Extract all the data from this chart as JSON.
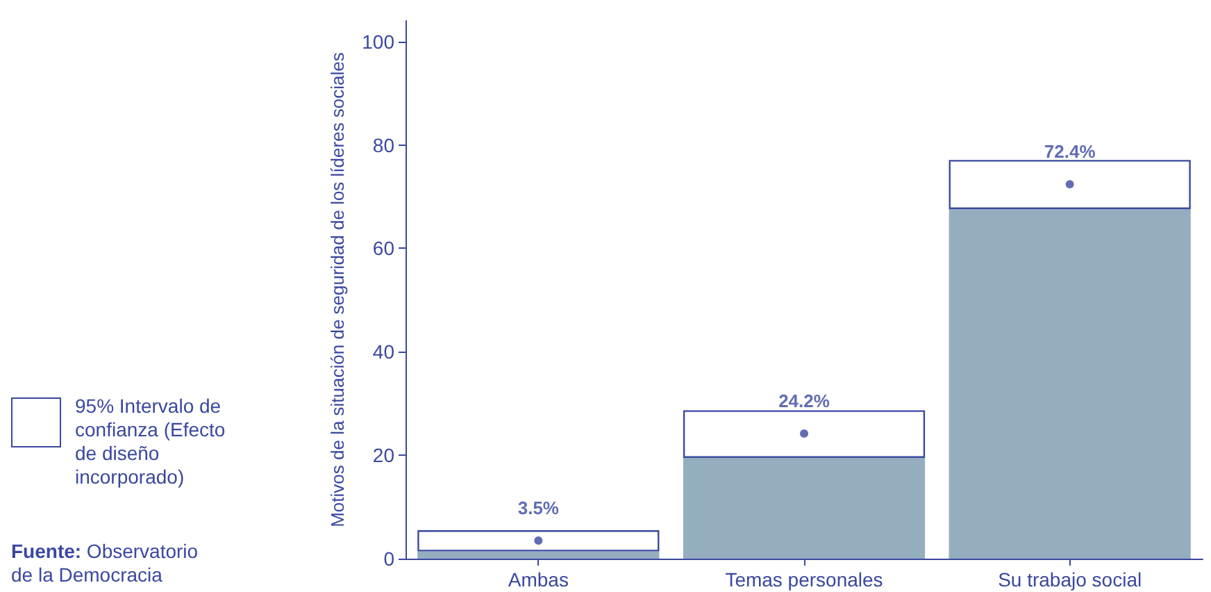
{
  "chart_data": {
    "type": "bar",
    "stacked": true,
    "ylabel": "Motivos de la situación de seguridad de los líderes sociales",
    "categories": [
      "Ambas",
      "Temas personales",
      "Su trabajo social"
    ],
    "series": [
      {
        "color": "#94aec0",
        "values": [
          1.4,
          19.5,
          67.6
        ]
      },
      {
        "name": "95% Intervalo de confianza (Efecto de diseño incorporado)",
        "color": "#ffffff",
        "values": [
          4.1,
          9.2,
          9.5
        ]
      },
      {
        "type": "scatter",
        "color": "#3a48a0",
        "x": [
          "Ambas",
          "Temas personales",
          "Su trabajo social"
        ],
        "values": [
          3.5,
          24.2,
          72.4
        ],
        "value_labels": [
          "3.5%",
          "24.2%",
          "72.4%"
        ]
      }
    ],
    "ylim": [
      0,
      104
    ],
    "yticks": [
      0,
      20,
      40,
      60,
      80,
      100
    ],
    "grid": false,
    "legend": "left",
    "annotations": [
      "Fuente: Observatorio de la Democracia"
    ]
  }
}
